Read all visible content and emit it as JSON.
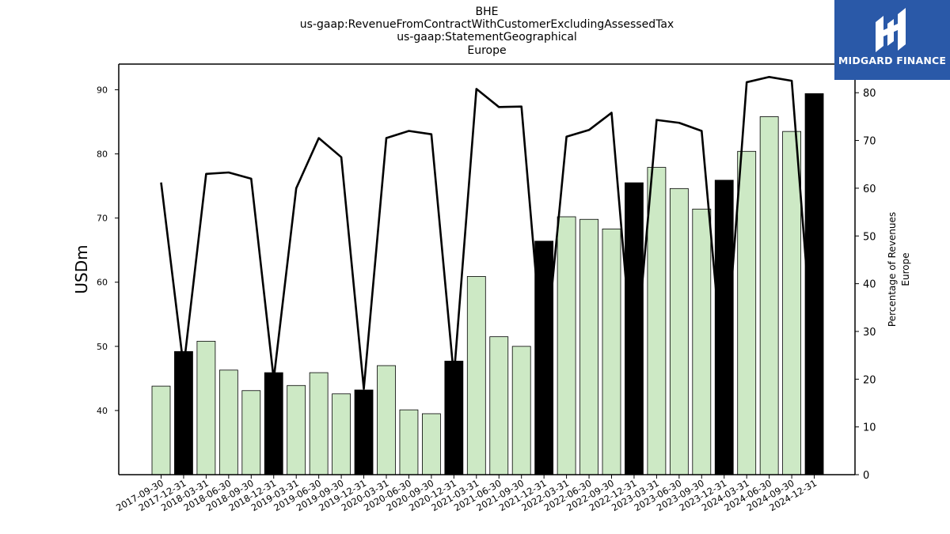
{
  "titles": [
    "BHE",
    "us-gaap:RevenueFromContractWithCustomerExcludingAssessedTax",
    "us-gaap:StatementGeographical",
    "Europe"
  ],
  "logo": {
    "text": "MIDGARD FINANCE",
    "bg_color": "#2a59a8"
  },
  "chart_data": {
    "type": "bar",
    "title": "BHE",
    "ylabel": "USDm",
    "y2label_lines": [
      "Percentage of Revenues",
      "Europe"
    ],
    "ylim": [
      30,
      94
    ],
    "y_ticks": [
      40,
      50,
      60,
      70,
      80,
      90
    ],
    "y2lim": [
      0,
      86
    ],
    "y2_ticks": [
      0,
      10,
      20,
      30,
      40,
      50,
      60,
      70,
      80
    ],
    "categories": [
      "2017-09-30",
      "2017-12-31",
      "2018-03-31",
      "2018-06-30",
      "2018-09-30",
      "2018-12-31",
      "2019-03-31",
      "2019-06-30",
      "2019-09-30",
      "2019-12-31",
      "2020-03-31",
      "2020-06-30",
      "2020-09-30",
      "2020-12-31",
      "2021-03-31",
      "2021-06-30",
      "2021-09-30",
      "2021-12-31",
      "2022-03-31",
      "2022-06-30",
      "2022-09-30",
      "2022-12-31",
      "2023-03-31",
      "2023-06-30",
      "2023-09-30",
      "2023-12-31",
      "2024-03-31",
      "2024-06-30",
      "2024-09-30",
      "2024-12-31"
    ],
    "series": [
      {
        "type": "bar",
        "values": [
          43.8,
          49.2,
          50.8,
          46.3,
          43.1,
          45.9,
          43.9,
          45.9,
          42.6,
          43.2,
          47.0,
          40.1,
          39.5,
          47.7,
          60.9,
          51.5,
          50.0,
          66.4,
          70.2,
          69.8,
          68.3,
          75.5,
          77.9,
          74.6,
          71.4,
          75.9,
          80.4,
          85.8,
          83.5,
          89.4
        ],
        "annual_flags": [
          false,
          true,
          false,
          false,
          false,
          true,
          false,
          false,
          false,
          true,
          false,
          false,
          false,
          true,
          false,
          false,
          false,
          true,
          false,
          false,
          false,
          true,
          false,
          false,
          false,
          true,
          false,
          false,
          false,
          true
        ],
        "quarter_color": "#cde9c5",
        "annual_color": "#000000"
      },
      {
        "type": "line",
        "axis": "right",
        "values": [
          61.2,
          22.5,
          63.0,
          63.3,
          62.0,
          20.0,
          60.0,
          70.5,
          66.5,
          18.0,
          70.5,
          72.0,
          71.3,
          20.5,
          80.8,
          77.0,
          77.1,
          22.0,
          70.8,
          72.2,
          75.8,
          20.5,
          74.3,
          73.7,
          72.0,
          19.5,
          82.2,
          83.3,
          82.5,
          22.0
        ],
        "color": "#000000"
      }
    ]
  }
}
